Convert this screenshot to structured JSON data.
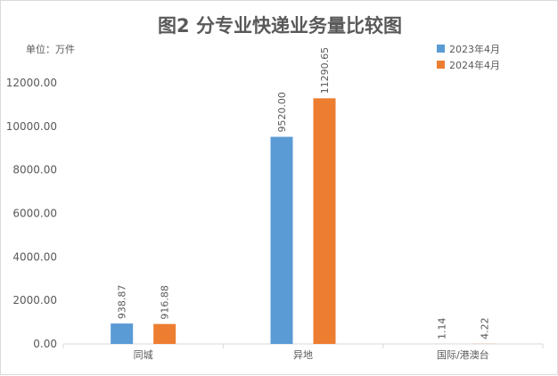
{
  "chart_data": {
    "type": "bar",
    "title": "图2 分专业快递业务量比较图",
    "unit_label": "单位：万件",
    "categories": [
      "同城",
      "异地",
      "国际/港澳台"
    ],
    "series": [
      {
        "name": "2023年4月",
        "color": "#5b9bd5",
        "values": [
          938.87,
          9520.0,
          1.14
        ],
        "labels": [
          "938.87",
          "9520.00",
          "1.14"
        ]
      },
      {
        "name": "2024年4月",
        "color": "#ed7d31",
        "values": [
          916.88,
          11290.65,
          4.22
        ],
        "labels": [
          "916.88",
          "11290.65",
          "4.22"
        ]
      }
    ],
    "ylim": [
      0,
      12000
    ],
    "yticks": [
      0,
      2000,
      4000,
      6000,
      8000,
      10000,
      12000
    ],
    "ytick_labels": [
      "0.00",
      "2000.00",
      "4000.00",
      "6000.00",
      "8000.00",
      "10000.00",
      "12000.00"
    ],
    "grid": false,
    "legend_position": "top-right",
    "data_label_rotation": "vertical"
  }
}
